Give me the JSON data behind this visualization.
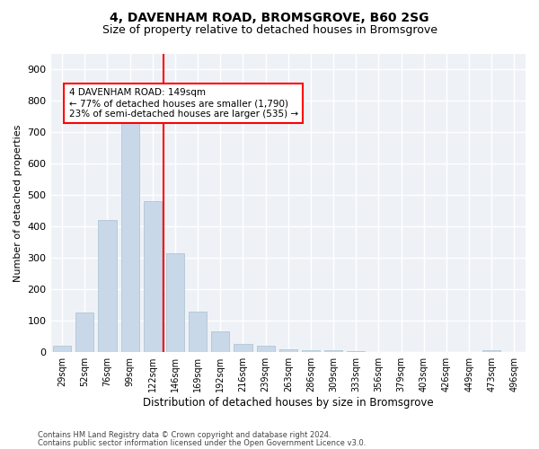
{
  "title1": "4, DAVENHAM ROAD, BROMSGROVE, B60 2SG",
  "title2": "Size of property relative to detached houses in Bromsgrove",
  "xlabel": "Distribution of detached houses by size in Bromsgrove",
  "ylabel": "Number of detached properties",
  "bar_color": "#c8d8e8",
  "bar_edgecolor": "#a8bfce",
  "vline_color": "red",
  "annotation_line1": "4 DAVENHAM ROAD: 149sqm",
  "annotation_line2": "← 77% of detached houses are smaller (1,790)",
  "annotation_line3": "23% of semi-detached houses are larger (535) →",
  "background_color": "#eef2f7",
  "grid_color": "#ffffff",
  "footer1": "Contains HM Land Registry data © Crown copyright and database right 2024.",
  "footer2": "Contains public sector information licensed under the Open Government Licence v3.0.",
  "bin_labels": [
    "29sqm",
    "52sqm",
    "76sqm",
    "99sqm",
    "122sqm",
    "146sqm",
    "169sqm",
    "192sqm",
    "216sqm",
    "239sqm",
    "263sqm",
    "286sqm",
    "309sqm",
    "333sqm",
    "356sqm",
    "379sqm",
    "403sqm",
    "426sqm",
    "449sqm",
    "473sqm",
    "496sqm"
  ],
  "heights": [
    20,
    125,
    420,
    730,
    480,
    315,
    130,
    65,
    25,
    20,
    10,
    5,
    5,
    3,
    2,
    1,
    0,
    0,
    0,
    5,
    0
  ],
  "vline_bin_index": 5,
  "ylim": [
    0,
    950
  ],
  "yticks": [
    0,
    100,
    200,
    300,
    400,
    500,
    600,
    700,
    800,
    900
  ]
}
